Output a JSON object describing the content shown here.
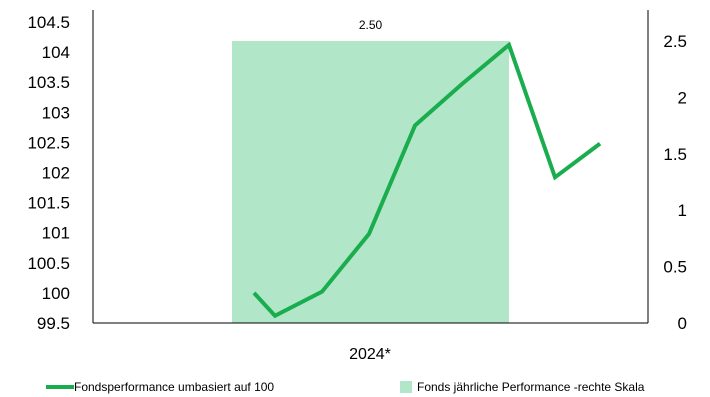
{
  "chart_data": {
    "type": "bar+line",
    "categories": [
      "2024*"
    ],
    "bar_series": {
      "name": "Fonds jährliche Performance -rechte Skala",
      "values": [
        2.5
      ],
      "data_label": "2.50",
      "axis": "right",
      "color": "#b2e6c8"
    },
    "line_series": {
      "name": "Fondsperformance umbasiert auf 100",
      "axis": "left",
      "color": "#1aad4e",
      "values": [
        100,
        99.62,
        100.02,
        100.98,
        102.78,
        103.47,
        104.12,
        101.92,
        102.48
      ]
    },
    "left_axis": {
      "ylim": [
        99.5,
        104.5
      ],
      "ticks": [
        "104.5",
        "104",
        "103.5",
        "103",
        "102.5",
        "102",
        "101.5",
        "101",
        "100.5",
        "100",
        "99.5"
      ]
    },
    "right_axis": {
      "ylim": [
        0,
        2.5
      ],
      "ticks": [
        "2.5",
        "2",
        "1.5",
        "1",
        "0.5",
        "0"
      ]
    },
    "legend": {
      "position": "bottom",
      "items": [
        "Fondsperformance umbasiert auf 100",
        "Fonds jährliche Performance -rechte Skala"
      ]
    }
  }
}
